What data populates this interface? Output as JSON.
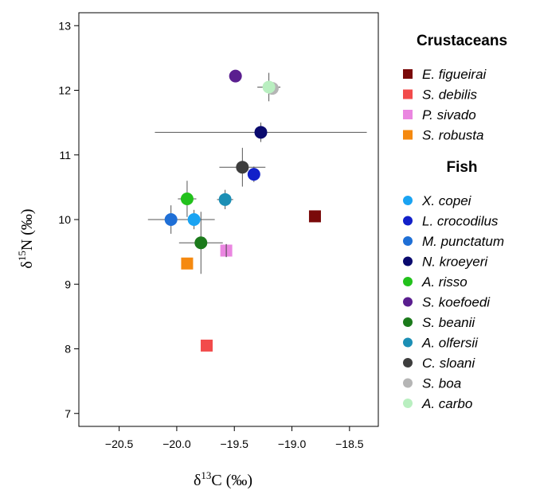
{
  "chart_data": {
    "type": "scatter",
    "xlabel_prefix": "δ",
    "xlabel_sup": "13",
    "xlabel_suffix": "C (‰)",
    "ylabel_prefix": "δ",
    "ylabel_sup": "15",
    "ylabel_suffix": "N (‰)",
    "xlim": [
      -20.85,
      -18.25
    ],
    "ylim": [
      6.8,
      13.2
    ],
    "xticks": [
      -20.5,
      -20.0,
      -19.5,
      -19.0,
      -18.5
    ],
    "xtick_labels": [
      "−20.5",
      "−20.0",
      "−19.5",
      "−19.0",
      "−18.5"
    ],
    "yticks": [
      7,
      8,
      9,
      10,
      11,
      12,
      13
    ],
    "ytick_labels": [
      "7",
      "8",
      "9",
      "10",
      "11",
      "12",
      "13"
    ],
    "grid": false,
    "legend_position": "right",
    "legend_groups": [
      {
        "title": "Crustaceans",
        "entries": [
          {
            "name": "E. figueirai",
            "color": "#7a0a0a",
            "marker": "square"
          },
          {
            "name": "S. debilis",
            "color": "#f24b4b",
            "marker": "square"
          },
          {
            "name": "P. sivado",
            "color": "#ea86e0",
            "marker": "square"
          },
          {
            "name": "S. robusta",
            "color": "#f5890f",
            "marker": "square"
          }
        ]
      },
      {
        "title": "Fish",
        "entries": [
          {
            "name": "X. copei",
            "color": "#1aa3f2",
            "marker": "circle"
          },
          {
            "name": "L. crocodilus",
            "color": "#1220c9",
            "marker": "circle"
          },
          {
            "name": "M. punctatum",
            "color": "#1f6fd6",
            "marker": "circle"
          },
          {
            "name": "N. kroeyeri",
            "color": "#0a0a6e",
            "marker": "circle"
          },
          {
            "name": "A. risso",
            "color": "#22c11c",
            "marker": "circle"
          },
          {
            "name": "S. koefoedi",
            "color": "#5a1e8f",
            "marker": "circle"
          },
          {
            "name": "S. beanii",
            "color": "#1b7a1b",
            "marker": "circle"
          },
          {
            "name": "A. olfersii",
            "color": "#1c8fb5",
            "marker": "circle"
          },
          {
            "name": "C. sloani",
            "color": "#3d3d3d",
            "marker": "circle"
          },
          {
            "name": "S. boa",
            "color": "#b5b5b5",
            "marker": "circle"
          },
          {
            "name": "A. carbo",
            "color": "#b9efc0",
            "marker": "circle"
          }
        ]
      }
    ],
    "points": [
      {
        "species": "E. figueirai",
        "x": -18.8,
        "y": 10.05,
        "xerr": 0.0,
        "yerr": 0.0
      },
      {
        "species": "S. debilis",
        "x": -19.74,
        "y": 8.05,
        "xerr": 0.0,
        "yerr": 0.0
      },
      {
        "species": "P. sivado",
        "x": -19.57,
        "y": 9.52,
        "xerr": 0.02,
        "yerr": 0.1
      },
      {
        "species": "S. robusta",
        "x": -19.91,
        "y": 9.32,
        "xerr": 0.0,
        "yerr": 0.0
      },
      {
        "species": "X. copei",
        "x": -19.85,
        "y": 10.0,
        "xerr": 0.18,
        "yerr": 0.15
      },
      {
        "species": "L. crocodilus",
        "x": -19.33,
        "y": 10.7,
        "xerr": 0.05,
        "yerr": 0.12
      },
      {
        "species": "M. punctatum",
        "x": -20.05,
        "y": 10.0,
        "xerr": 0.2,
        "yerr": 0.22
      },
      {
        "species": "N. kroeyeri",
        "x": -19.27,
        "y": 11.35,
        "xerr": 0.92,
        "yerr": 0.15
      },
      {
        "species": "A. risso",
        "x": -19.91,
        "y": 10.32,
        "xerr": 0.08,
        "yerr": 0.28
      },
      {
        "species": "S. koefoedi",
        "x": -19.49,
        "y": 12.22,
        "xerr": 0.0,
        "yerr": 0.0
      },
      {
        "species": "S. beanii",
        "x": -19.79,
        "y": 9.64,
        "xerr": 0.19,
        "yerr": 0.48
      },
      {
        "species": "A. olfersii",
        "x": -19.58,
        "y": 10.31,
        "xerr": 0.07,
        "yerr": 0.15
      },
      {
        "species": "C. sloani",
        "x": -19.43,
        "y": 10.81,
        "xerr": 0.2,
        "yerr": 0.3
      },
      {
        "species": "S. boa",
        "x": -19.17,
        "y": 12.03,
        "xerr": 0.05,
        "yerr": 0.05
      },
      {
        "species": "A. carbo",
        "x": -19.2,
        "y": 12.05,
        "xerr": 0.1,
        "yerr": 0.22
      }
    ]
  }
}
